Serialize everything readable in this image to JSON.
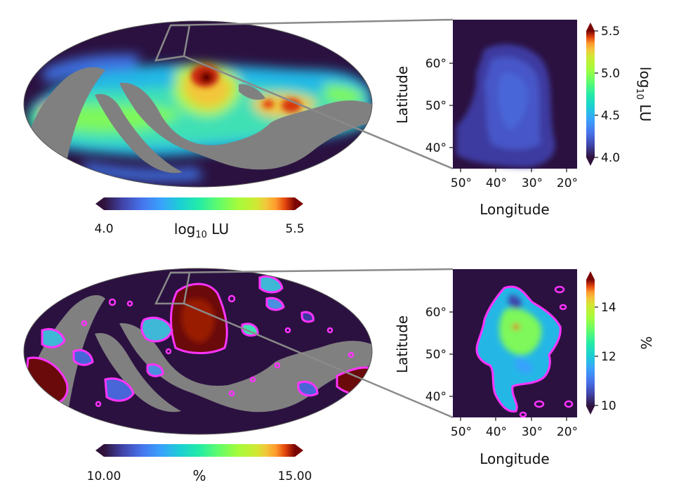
{
  "chart_data": [
    {
      "type": "heatmap",
      "panel": "top-sky-map",
      "projection": "mollweide",
      "colorbar": {
        "orientation": "horizontal",
        "label_main": "log",
        "label_sub": "10",
        "label_tail": " LU",
        "min": 4.0,
        "max": 5.5,
        "tick_labels": [
          "4.0",
          "5.5"
        ],
        "colormap": "turbo",
        "extend": "both"
      },
      "masked_color": "#808080",
      "background_color": "#2b1140"
    },
    {
      "type": "heatmap",
      "panel": "top-zoom",
      "xlabel": "Longitude",
      "ylabel": "Latitude",
      "xlim": [
        52,
        17
      ],
      "ylim": [
        35,
        68
      ],
      "xticks": [
        50,
        40,
        30,
        20
      ],
      "xtick_labels": [
        "50°",
        "40°",
        "30°",
        "20°"
      ],
      "yticks": [
        40,
        50,
        60
      ],
      "ytick_labels": [
        "40°",
        "50°",
        "60°"
      ],
      "colorbar": {
        "orientation": "vertical",
        "label_main": "log",
        "label_sub": "10",
        "label_tail": " LU",
        "min": 4.0,
        "max": 5.5,
        "ticks": [
          4.0,
          4.5,
          5.0,
          5.5
        ],
        "tick_labels": [
          "4.0",
          "4.5",
          "5.0",
          "5.5"
        ],
        "colormap": "turbo",
        "extend": "both"
      }
    },
    {
      "type": "heatmap",
      "panel": "bottom-sky-map",
      "projection": "mollweide",
      "colorbar": {
        "orientation": "horizontal",
        "label_main": "%",
        "min": 10.0,
        "max": 15.0,
        "tick_labels": [
          "10.00",
          "15.00"
        ],
        "colormap": "turbo",
        "extend": "both"
      },
      "contour_color": "#ff33ff",
      "masked_color": "#808080",
      "background_color": "#2b1140"
    },
    {
      "type": "heatmap",
      "panel": "bottom-zoom",
      "xlabel": "Longitude",
      "ylabel": "Latitude",
      "xlim": [
        52,
        17
      ],
      "ylim": [
        35,
        68
      ],
      "xticks": [
        50,
        40,
        30,
        20
      ],
      "xtick_labels": [
        "50°",
        "40°",
        "30°",
        "20°"
      ],
      "yticks": [
        40,
        50,
        60
      ],
      "ytick_labels": [
        "40°",
        "50°",
        "60°"
      ],
      "colorbar": {
        "orientation": "vertical",
        "label_main": "%",
        "min": 9.6,
        "max": 15.2,
        "ticks": [
          10,
          12,
          14
        ],
        "tick_labels": [
          "10",
          "12",
          "14"
        ],
        "colormap": "turbo",
        "extend": "both"
      },
      "contour_color": "#ff33ff"
    }
  ]
}
